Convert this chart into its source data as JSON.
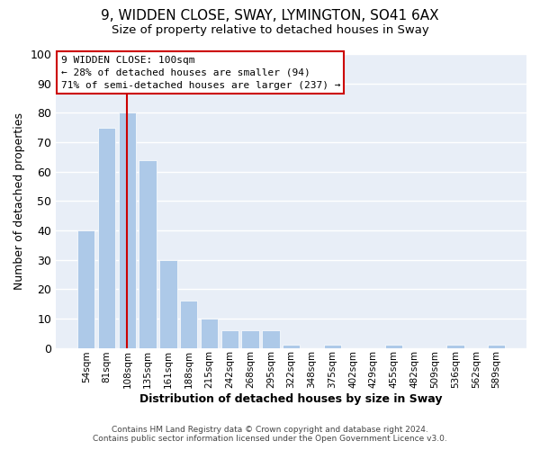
{
  "title1": "9, WIDDEN CLOSE, SWAY, LYMINGTON, SO41 6AX",
  "title2": "Size of property relative to detached houses in Sway",
  "xlabel": "Distribution of detached houses by size in Sway",
  "ylabel": "Number of detached properties",
  "bar_labels": [
    "54sqm",
    "81sqm",
    "108sqm",
    "135sqm",
    "161sqm",
    "188sqm",
    "215sqm",
    "242sqm",
    "268sqm",
    "295sqm",
    "322sqm",
    "348sqm",
    "375sqm",
    "402sqm",
    "429sqm",
    "455sqm",
    "482sqm",
    "509sqm",
    "536sqm",
    "562sqm",
    "589sqm"
  ],
  "bar_values": [
    40,
    75,
    80,
    64,
    30,
    16,
    10,
    6,
    6,
    6,
    1,
    0,
    1,
    0,
    0,
    1,
    0,
    0,
    1,
    0,
    1
  ],
  "bar_color": "#adc9e8",
  "bar_edge_color": "#ffffff",
  "vline_x": 2,
  "vline_color": "#cc0000",
  "ylim": [
    0,
    100
  ],
  "yticks": [
    0,
    10,
    20,
    30,
    40,
    50,
    60,
    70,
    80,
    90,
    100
  ],
  "annotation_title": "9 WIDDEN CLOSE: 100sqm",
  "annotation_line1": "← 28% of detached houses are smaller (94)",
  "annotation_line2": "71% of semi-detached houses are larger (237) →",
  "annotation_box_color": "#ffffff",
  "annotation_box_edge": "#cc0000",
  "footer1": "Contains HM Land Registry data © Crown copyright and database right 2024.",
  "footer2": "Contains public sector information licensed under the Open Government Licence v3.0.",
  "bg_color": "#ffffff",
  "plot_bg_color": "#e8eef7",
  "grid_color": "#ffffff",
  "title1_fontsize": 11,
  "title2_fontsize": 9.5
}
